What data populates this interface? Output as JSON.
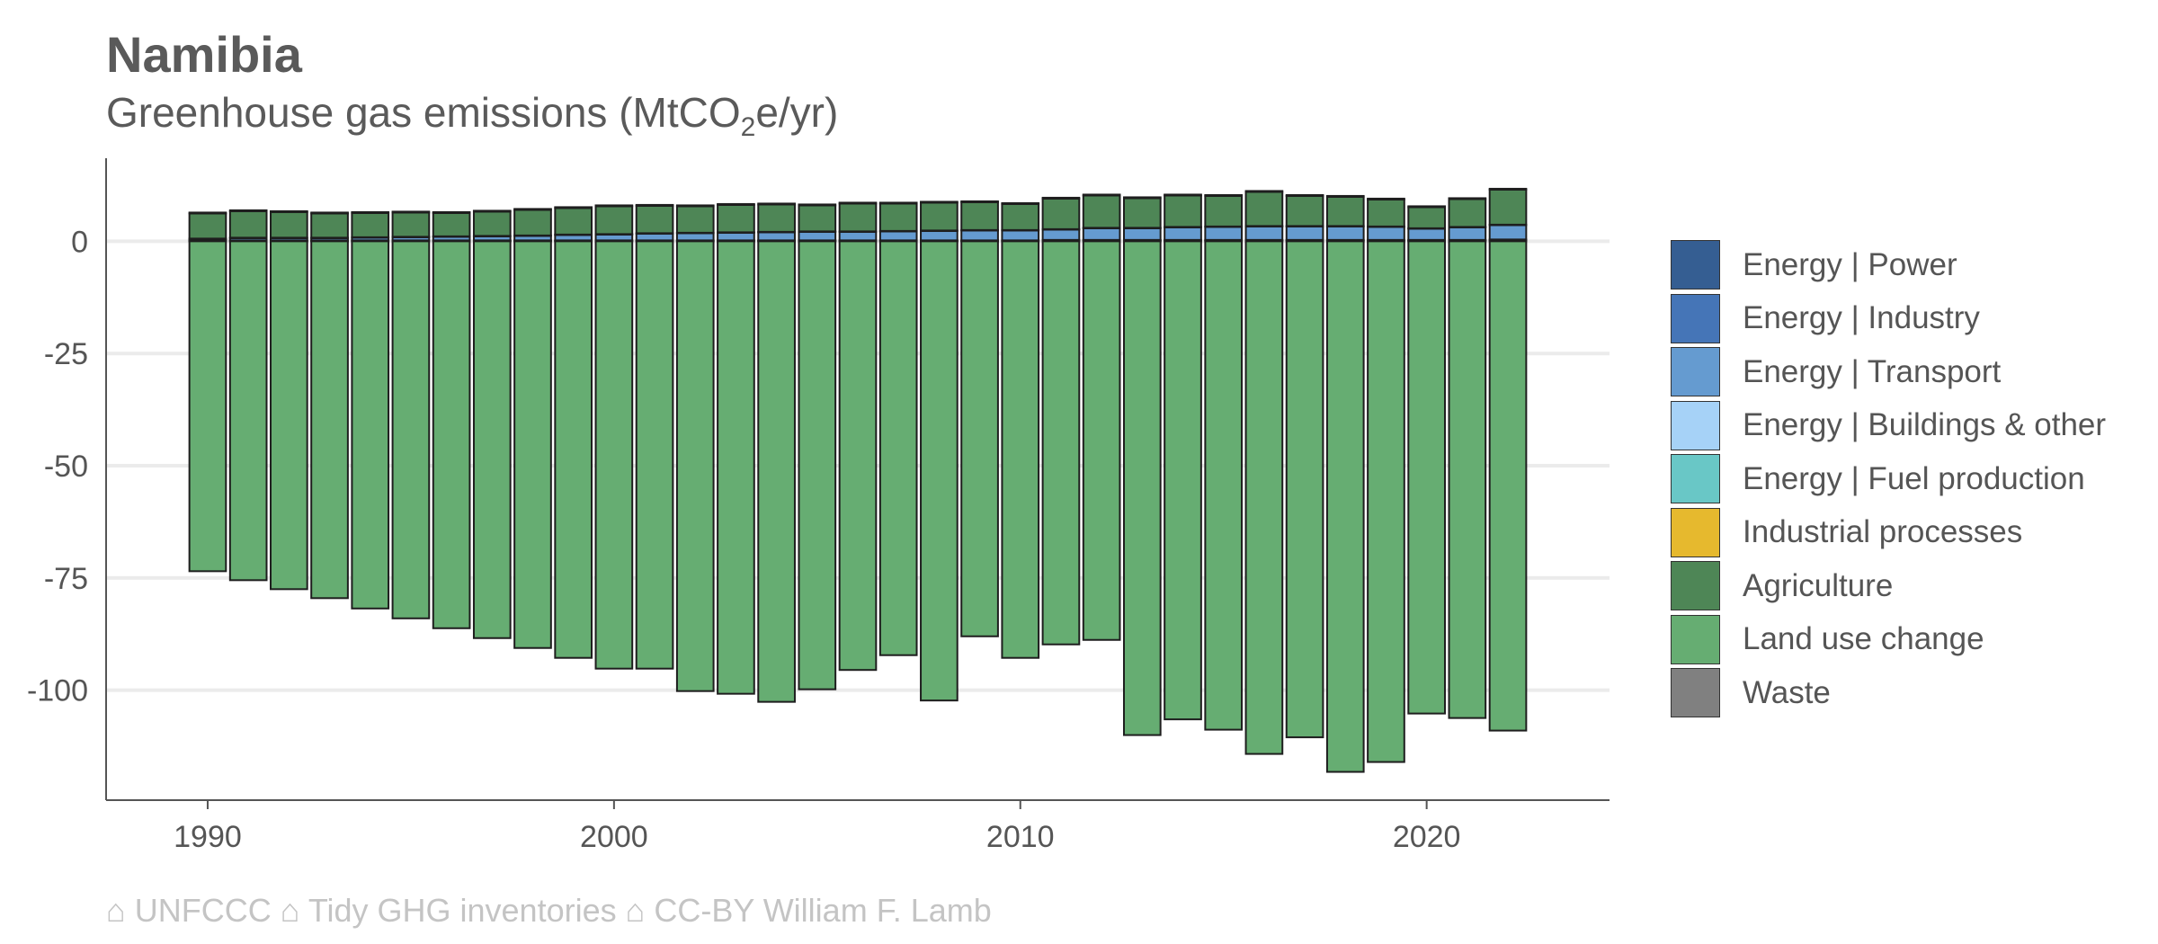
{
  "header": {
    "title": "Namibia",
    "subtitle_main": "Greenhouse gas emissions (MtCO",
    "subtitle_sub": "2",
    "subtitle_tail": "e/yr)"
  },
  "caption": "⌂ UNFCCC ⌂ Tidy GHG inventories ⌂ CC-BY William F. Lamb",
  "chart_data": {
    "type": "bar",
    "stacked": true,
    "title": "Namibia",
    "subtitle": "Greenhouse gas emissions (MtCO2e/yr)",
    "xlabel": "",
    "ylabel": "",
    "x_ticks": [
      1990,
      2000,
      2010,
      2020
    ],
    "y_ticks": [
      0,
      -25,
      -50,
      -75,
      -100
    ],
    "y_tick_labels": [
      "0",
      "-25",
      "-50",
      "-75",
      "-100"
    ],
    "xlim": [
      1987.5,
      2024.5
    ],
    "ylim": [
      -124.5,
      18.5
    ],
    "grid": "horizontal",
    "legend_position": "right",
    "categories": [
      1990,
      1991,
      1992,
      1993,
      1994,
      1995,
      1996,
      1997,
      1998,
      1999,
      2000,
      2001,
      2002,
      2003,
      2004,
      2005,
      2006,
      2007,
      2008,
      2009,
      2010,
      2011,
      2012,
      2013,
      2014,
      2015,
      2016,
      2017,
      2018,
      2019,
      2020,
      2021,
      2022
    ],
    "series": [
      {
        "name": "Energy | Power",
        "color": "#355e92",
        "values": [
          0.1,
          0.1,
          0.1,
          0.1,
          0.1,
          0.1,
          0.1,
          0.1,
          0.1,
          0.1,
          0.1,
          0.1,
          0.1,
          0.1,
          0.1,
          0.1,
          0.1,
          0.1,
          0.1,
          0.1,
          0.1,
          0.2,
          0.2,
          0.2,
          0.2,
          0.2,
          0.2,
          0.2,
          0.2,
          0.2,
          0.2,
          0.2,
          0.3
        ]
      },
      {
        "name": "Energy | Industry",
        "color": "#4575b7",
        "values": [
          0.1,
          0.1,
          0.1,
          0.1,
          0.1,
          0.1,
          0.1,
          0.1,
          0.1,
          0.1,
          0.1,
          0.1,
          0.1,
          0.1,
          0.1,
          0.1,
          0.1,
          0.1,
          0.1,
          0.1,
          0.1,
          0.1,
          0.1,
          0.1,
          0.1,
          0.1,
          0.1,
          0.1,
          0.1,
          0.1,
          0.1,
          0.1,
          0.1
        ]
      },
      {
        "name": "Energy | Transport",
        "color": "#659bd0",
        "values": [
          0.3,
          0.5,
          0.5,
          0.5,
          0.6,
          0.7,
          0.8,
          0.9,
          1.0,
          1.2,
          1.3,
          1.5,
          1.6,
          1.7,
          1.8,
          1.9,
          1.9,
          2.0,
          2.1,
          2.2,
          2.2,
          2.3,
          2.6,
          2.6,
          2.8,
          2.9,
          3.0,
          3.0,
          3.0,
          2.9,
          2.5,
          2.8,
          3.2
        ]
      },
      {
        "name": "Energy | Buildings & other",
        "color": "#a6d2f7",
        "values": [
          0.1,
          0.1,
          0.1,
          0.1,
          0.1,
          0.1,
          0.1,
          0.1,
          0.1,
          0.1,
          0.1,
          0.1,
          0.1,
          0.1,
          0.1,
          0.1,
          0.1,
          0.1,
          0.1,
          0.1,
          0.1,
          0.1,
          0.1,
          0.1,
          0.1,
          0.1,
          0.1,
          0.1,
          0.1,
          0.1,
          0.1,
          0.1,
          0.1
        ]
      },
      {
        "name": "Energy | Fuel production",
        "color": "#69c7c6",
        "values": [
          0,
          0,
          0,
          0,
          0,
          0,
          0,
          0,
          0,
          0,
          0,
          0,
          0,
          0,
          0,
          0,
          0,
          0,
          0,
          0,
          0,
          0,
          0,
          0,
          0,
          0,
          0,
          0,
          0,
          0,
          0,
          0,
          0
        ]
      },
      {
        "name": "Industrial processes",
        "color": "#e6b92e",
        "values": [
          0,
          0,
          0,
          0,
          0,
          0,
          0,
          0,
          0,
          0,
          0,
          0,
          0,
          0,
          0,
          0,
          0,
          0,
          0,
          0,
          0,
          0,
          0,
          0,
          0,
          0,
          0,
          0,
          0,
          0,
          0,
          0,
          0
        ]
      },
      {
        "name": "Agriculture",
        "color": "#4e8656",
        "values": [
          5.6,
          5.9,
          5.7,
          5.4,
          5.4,
          5.4,
          5.2,
          5.4,
          5.7,
          5.9,
          6.2,
          6.1,
          5.9,
          6.1,
          6.1,
          5.8,
          6.2,
          6.1,
          6.2,
          6.2,
          5.8,
          6.8,
          7.2,
          6.6,
          7.0,
          6.8,
          7.6,
          6.7,
          6.5,
          6.0,
          4.7,
          6.2,
          7.8
        ]
      },
      {
        "name": "Land use change",
        "color": "#66ad72",
        "values": [
          -73.5,
          -75.5,
          -77.5,
          -79.5,
          -81.8,
          -84.0,
          -86.2,
          -88.4,
          -90.6,
          -92.8,
          -95.2,
          -95.2,
          -100.2,
          -100.8,
          -102.6,
          -99.8,
          -95.5,
          -92.2,
          -102.3,
          -88.0,
          -92.8,
          -89.8,
          -88.8,
          -110.0,
          -106.5,
          -108.8,
          -114.2,
          -110.5,
          -118.2,
          -116.0,
          -105.2,
          -106.2,
          -109.0
        ]
      },
      {
        "name": "Waste",
        "color": "#808080",
        "values": [
          0.2,
          0.2,
          0.2,
          0.2,
          0.2,
          0.2,
          0.2,
          0.2,
          0.2,
          0.2,
          0.2,
          0.2,
          0.2,
          0.2,
          0.2,
          0.2,
          0.2,
          0.2,
          0.2,
          0.2,
          0.2,
          0.2,
          0.2,
          0.2,
          0.2,
          0.2,
          0.2,
          0.2,
          0.2,
          0.2,
          0.2,
          0.2,
          0.2
        ]
      }
    ]
  }
}
